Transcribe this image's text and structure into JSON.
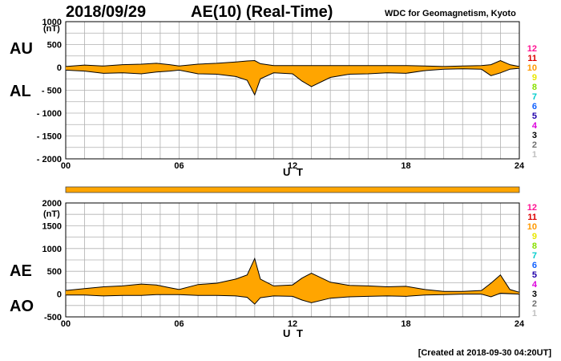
{
  "header": {
    "date": "2018/09/29",
    "title": "AE(10) (Real-Time)",
    "source": "WDC for Geomagnetism, Kyoto"
  },
  "footer": {
    "created": "[Created at 2018-09-30 04:20UT]"
  },
  "colors": {
    "fill": "#ffa500",
    "line": "#000000",
    "grid": "#b0b0b0"
  },
  "chart_data": [
    {
      "type": "area",
      "panel": "AU/AL",
      "labels": {
        "upper": "AU",
        "lower": "AL"
      },
      "xlabel": "U T",
      "unit": "(nT)",
      "xlim": [
        0,
        24
      ],
      "ylim": [
        -2000,
        1000
      ],
      "xticks": [
        "00",
        "06",
        "12",
        "18",
        "24"
      ],
      "yticks": [
        "1000",
        "500",
        "0",
        "- 500",
        "- 1000",
        "- 1500",
        "- 2000"
      ],
      "ytick_values": [
        1000,
        500,
        0,
        -500,
        -1000,
        -1500,
        -2000
      ],
      "x": [
        0,
        1,
        2,
        3,
        4,
        4.8,
        5.5,
        6,
        7,
        8,
        9,
        9.6,
        10,
        10.3,
        11,
        12,
        12.5,
        13,
        14,
        15,
        16,
        17,
        18,
        19,
        20,
        21,
        22,
        22.5,
        23,
        23.5,
        24
      ],
      "series": [
        {
          "name": "AU",
          "values": [
            20,
            50,
            30,
            60,
            70,
            90,
            60,
            30,
            70,
            90,
            120,
            140,
            150,
            80,
            40,
            40,
            40,
            40,
            40,
            40,
            40,
            40,
            40,
            30,
            20,
            30,
            40,
            60,
            150,
            60,
            20
          ]
        },
        {
          "name": "AL",
          "values": [
            -60,
            -80,
            -130,
            -120,
            -140,
            -100,
            -80,
            -60,
            -140,
            -150,
            -200,
            -280,
            -600,
            -250,
            -120,
            -140,
            -300,
            -420,
            -220,
            -150,
            -140,
            -120,
            -130,
            -70,
            -40,
            -30,
            -40,
            -180,
            -120,
            -40,
            -20
          ]
        }
      ]
    },
    {
      "type": "area",
      "panel": "AE/AO",
      "labels": {
        "upper": "AE",
        "lower": "AO"
      },
      "xlabel": "U T",
      "unit": "(nT)",
      "xlim": [
        0,
        24
      ],
      "ylim": [
        -500,
        2000
      ],
      "xticks": [
        "00",
        "06",
        "12",
        "18",
        "24"
      ],
      "yticks": [
        "2000",
        "1500",
        "1000",
        "500",
        "0",
        "-500"
      ],
      "ytick_values": [
        2000,
        1500,
        1000,
        500,
        0,
        -500
      ],
      "x": [
        0,
        1,
        2,
        3,
        4,
        4.8,
        5.5,
        6,
        7,
        8,
        9,
        9.6,
        10,
        10.3,
        11,
        12,
        12.5,
        13,
        14,
        15,
        16,
        17,
        18,
        19,
        20,
        21,
        22,
        22.5,
        23,
        23.5,
        24
      ],
      "series": [
        {
          "name": "AE",
          "values": [
            80,
            120,
            160,
            180,
            220,
            200,
            140,
            100,
            210,
            240,
            330,
            420,
            780,
            330,
            180,
            200,
            350,
            460,
            260,
            190,
            180,
            160,
            170,
            100,
            60,
            60,
            80,
            240,
            420,
            100,
            40
          ]
        },
        {
          "name": "AO",
          "values": [
            -20,
            -20,
            -40,
            -30,
            -30,
            -10,
            -10,
            -10,
            -30,
            -30,
            -40,
            -70,
            -220,
            -80,
            -40,
            -50,
            -130,
            -190,
            -90,
            -60,
            -50,
            -40,
            -50,
            -20,
            -10,
            0,
            0,
            -60,
            20,
            10,
            0
          ]
        }
      ]
    }
  ],
  "quality_bar": {
    "color": "#ffa500"
  },
  "level_legend": [
    {
      "label": "12",
      "color": "#ff1493"
    },
    {
      "label": "11",
      "color": "#dd0000"
    },
    {
      "label": "10",
      "color": "#ff9900"
    },
    {
      "label": "9",
      "color": "#e8e800"
    },
    {
      "label": "8",
      "color": "#88e000"
    },
    {
      "label": "7",
      "color": "#00cccc"
    },
    {
      "label": "6",
      "color": "#1060ff"
    },
    {
      "label": "5",
      "color": "#2000aa"
    },
    {
      "label": "4",
      "color": "#dd00dd"
    },
    {
      "label": "3",
      "color": "#000000"
    },
    {
      "label": "2",
      "color": "#707070"
    },
    {
      "label": "1",
      "color": "#c0c0c0"
    }
  ]
}
